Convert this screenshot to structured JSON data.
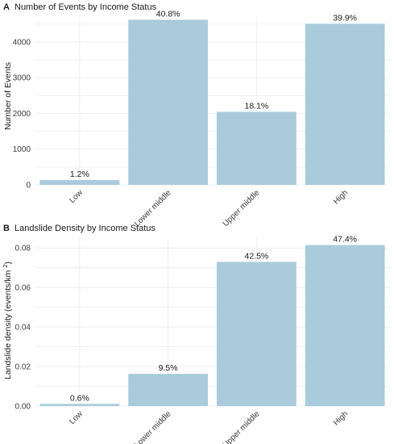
{
  "chart_data": [
    {
      "type": "bar",
      "panel_label": "A",
      "title": "Number of Events by Income Status",
      "xlabel": "",
      "ylabel": "Number of Events",
      "categories": [
        "Low",
        "Lower middle",
        "Upper middle",
        "High"
      ],
      "values": [
        135,
        4620,
        2045,
        4510
      ],
      "data_labels": [
        "1.2%",
        "40.8%",
        "18.1%",
        "39.9%"
      ],
      "ylim": [
        0,
        4700
      ],
      "yticks": [
        "0",
        "1000",
        "2000",
        "3000",
        "4000"
      ],
      "bar_color": "#a9cbdb",
      "grid": true
    },
    {
      "type": "bar",
      "panel_label": "B",
      "title": "Landslide Density by Income Status",
      "xlabel": "",
      "ylabel": "Landslide density (events/km²)",
      "categories": [
        "Low",
        "Lower middle",
        "Upper middle",
        "High"
      ],
      "values": [
        0.0011,
        0.0163,
        0.073,
        0.0815
      ],
      "data_labels": [
        "0.6%",
        "9.5%",
        "42.5%",
        "47.4%"
      ],
      "ylim": [
        0,
        0.085
      ],
      "yticks": [
        "0.00",
        "0.02",
        "0.04",
        "0.06",
        "0.08"
      ],
      "bar_color": "#a9cbdb",
      "grid": true
    }
  ]
}
